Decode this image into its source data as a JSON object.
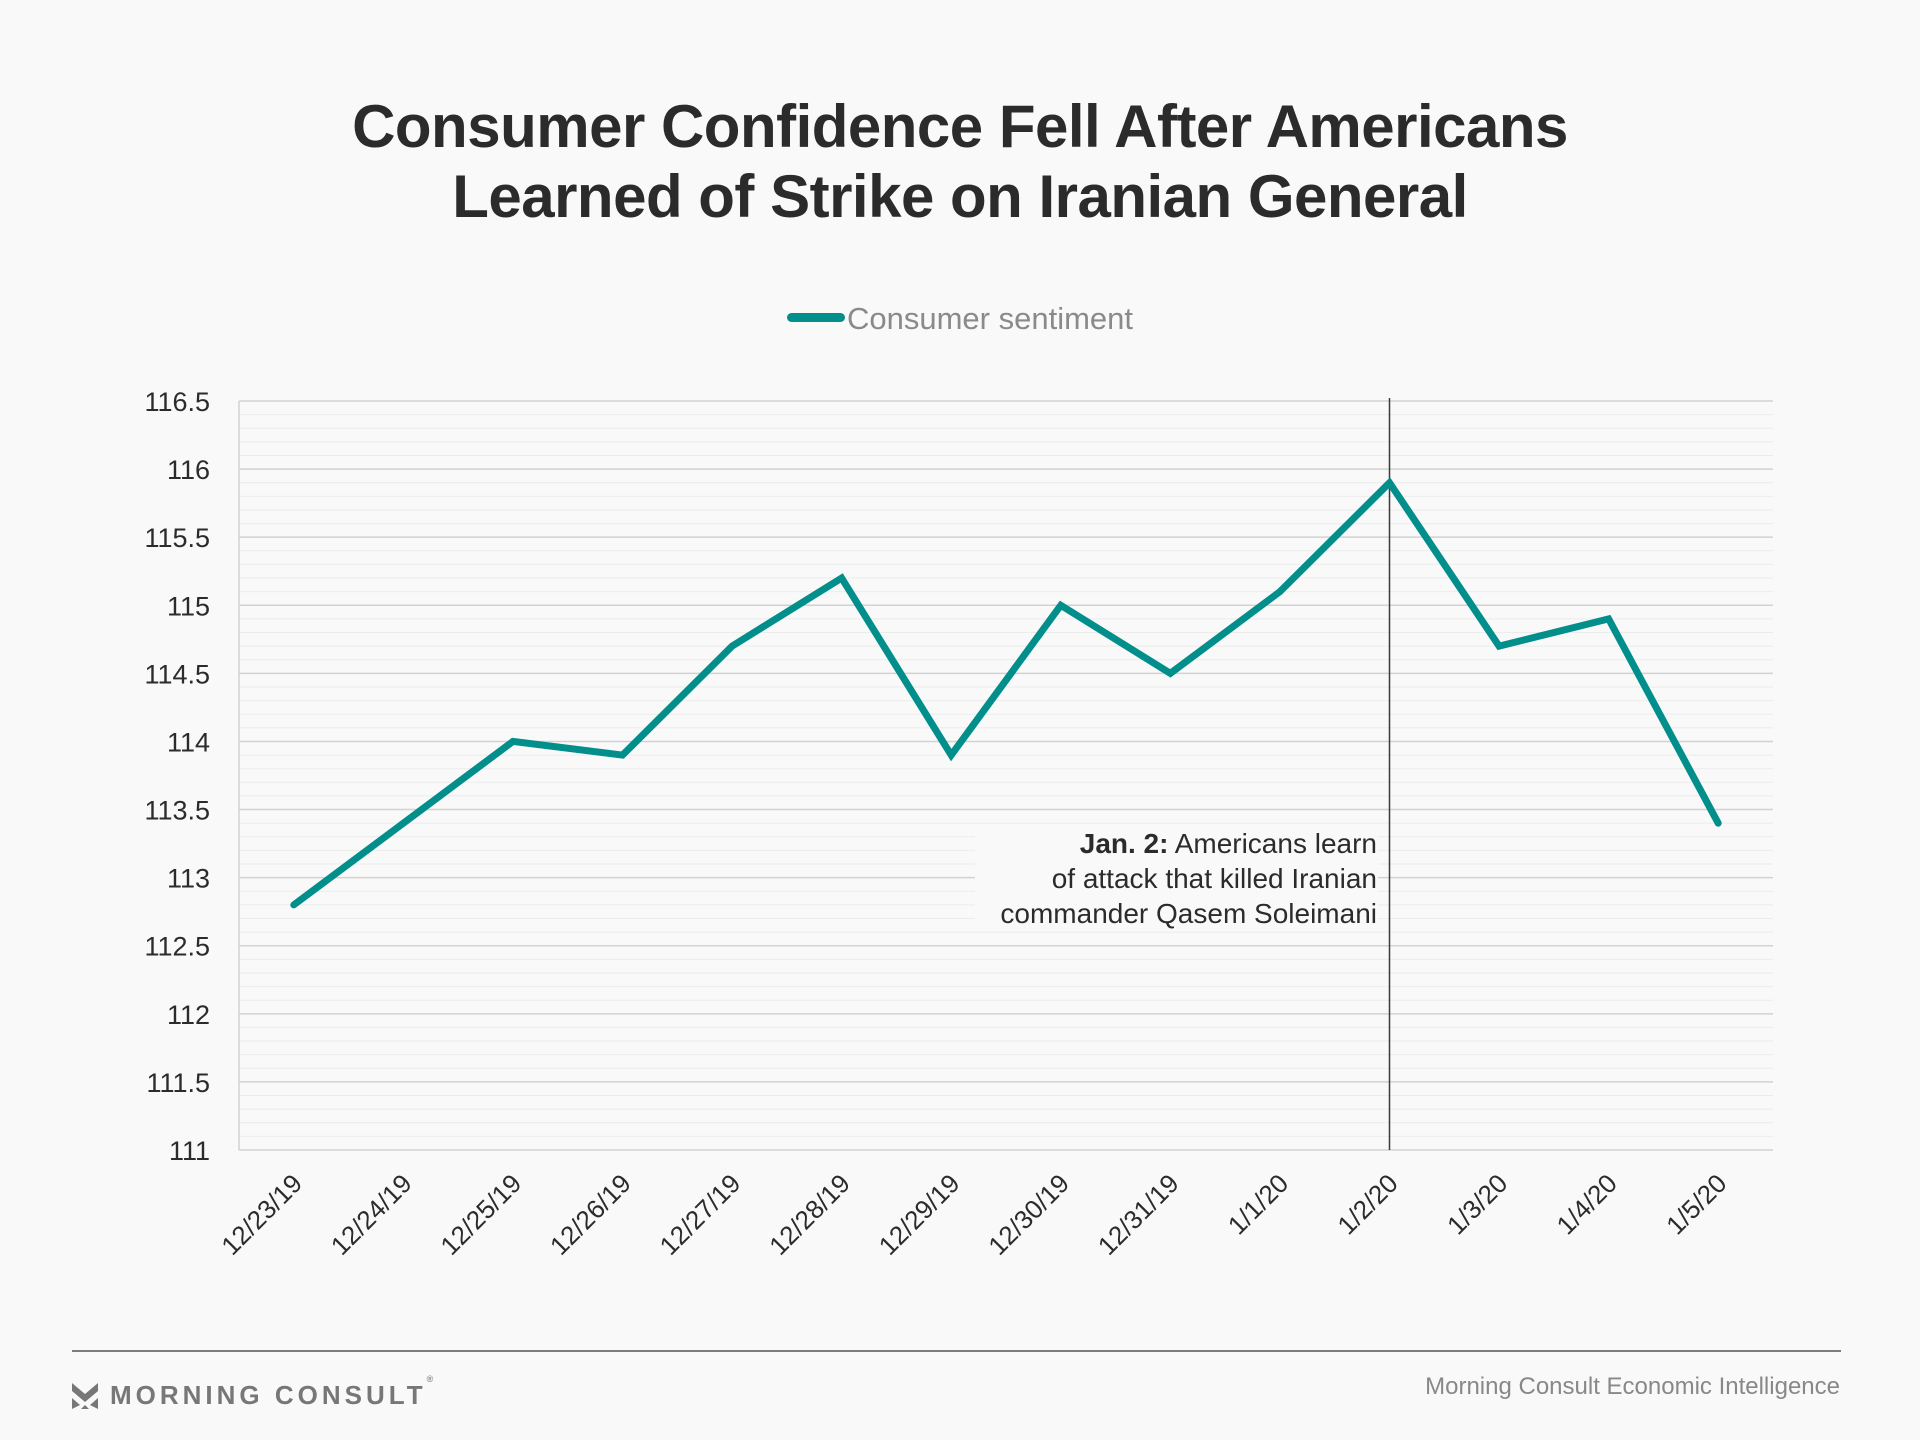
{
  "title": {
    "line1": "Consumer Confidence Fell After Americans",
    "line2": "Learned of Strike on Iranian General"
  },
  "legend": {
    "label": "Consumer sentiment",
    "color": "#028f8c"
  },
  "annotation": {
    "bold": "Jan. 2:",
    "line1_rest": " Americans learn",
    "line2": "of attack that killed Iranian",
    "line3": "commander Qasem Soleimani",
    "marker_category": "1/2/20"
  },
  "footer": {
    "brand": "MORNING CONSULT",
    "brand_mark": "®",
    "source": "Morning Consult Economic Intelligence"
  },
  "chart_data": {
    "type": "line",
    "title": "Consumer Confidence Fell After Americans Learned of Strike on Iranian General",
    "xlabel": "",
    "ylabel": "",
    "categories": [
      "12/23/19",
      "12/24/19",
      "12/25/19",
      "12/26/19",
      "12/27/19",
      "12/28/19",
      "12/29/19",
      "12/30/19",
      "12/31/19",
      "1/1/20",
      "1/2/20",
      "1/3/20",
      "1/4/20",
      "1/5/20"
    ],
    "series": [
      {
        "name": "Consumer sentiment",
        "color": "#028f8c",
        "values": [
          112.8,
          113.4,
          114.0,
          113.9,
          114.7,
          115.2,
          113.9,
          115.0,
          114.5,
          115.1,
          115.9,
          114.7,
          114.9,
          113.4
        ]
      }
    ],
    "ylim": [
      111,
      116.5
    ],
    "yticks": [
      111,
      111.5,
      112,
      112.5,
      113,
      113.5,
      114,
      114.5,
      115,
      115.5,
      116,
      116.5
    ],
    "ytick_labels": [
      "111",
      "111.5",
      "112",
      "112.5",
      "113",
      "113.5",
      "114",
      "114.5",
      "115",
      "115.5",
      "116",
      "116.5"
    ],
    "minor_grid_step": 0.1,
    "grid": true,
    "legend_position": "top-center",
    "vertical_marker": "1/2/20"
  }
}
